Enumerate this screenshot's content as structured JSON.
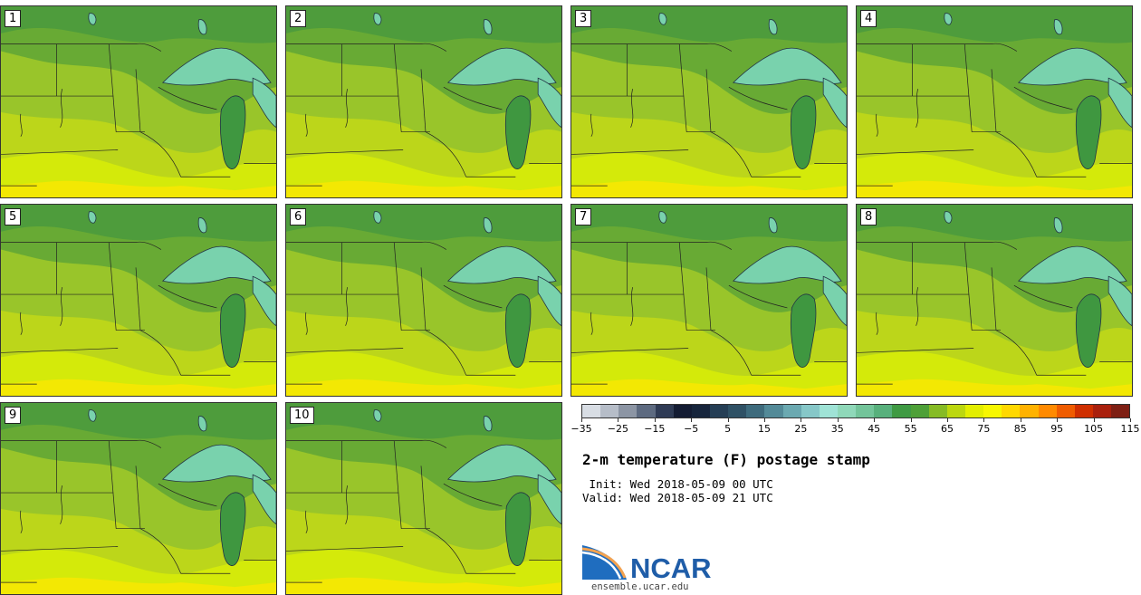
{
  "panels": [
    {
      "label": "1"
    },
    {
      "label": "2"
    },
    {
      "label": "3"
    },
    {
      "label": "4"
    },
    {
      "label": "5"
    },
    {
      "label": "6"
    },
    {
      "label": "7"
    },
    {
      "label": "8"
    },
    {
      "label": "9"
    },
    {
      "label": "10"
    }
  ],
  "colorbar": {
    "colors": [
      "#d8dde4",
      "#b6bdc8",
      "#8c95a4",
      "#5d6a80",
      "#2f3b55",
      "#141c33",
      "#17253c",
      "#253e55",
      "#2f5165",
      "#3e6b7d",
      "#538a98",
      "#6ba9b1",
      "#86c7c8",
      "#9fe3d6",
      "#8fd8b9",
      "#73c49a",
      "#58b07c",
      "#3f9a43",
      "#4ea038",
      "#86bb25",
      "#bcd70f",
      "#e3ee00",
      "#f7f700",
      "#ffd800",
      "#ffb200",
      "#ff8a00",
      "#ef5c00",
      "#cf2f00",
      "#a9200d",
      "#7e1f14"
    ],
    "tick_labels": [
      "−35",
      "−25",
      "−15",
      "−5",
      "5",
      "15",
      "25",
      "35",
      "45",
      "55",
      "65",
      "75",
      "85",
      "95",
      "105",
      "115"
    ]
  },
  "title": "2-m temperature (F) postage stamp",
  "init": " Init: Wed 2018-05-09 00 UTC",
  "valid": "Valid: Wed 2018-05-09 21 UTC",
  "logo": {
    "text": "NCAR",
    "color": "#1f5da8"
  },
  "url": "ensemble.ucar.edu"
}
